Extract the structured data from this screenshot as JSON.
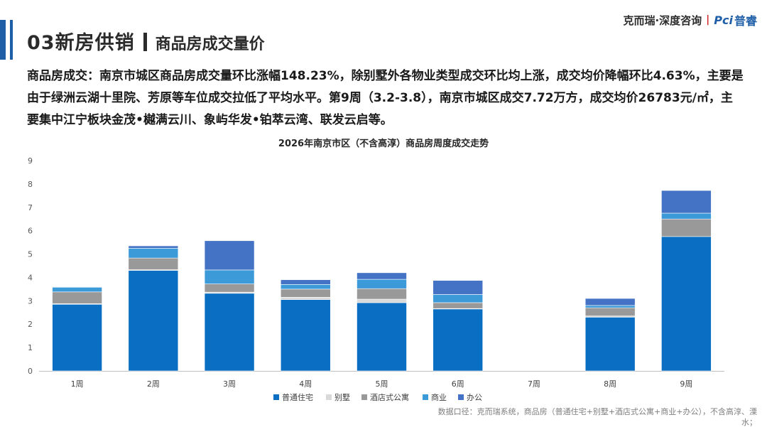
{
  "header": {
    "title_main": "03新房供销",
    "title_sub": "商品房成交量价",
    "brand_text": "克而瑞·深度咨询",
    "brand_divider": "|",
    "brand_logo": "Pci",
    "brand_logo_cn": "普睿"
  },
  "summary": "商品房成交：南京市城区商品房成交量环比涨幅148.23%，除别墅外各物业类型成交环比均上涨，成交均价降幅环比4.63%，主要是由于绿洲云湖十里院、芳原等车位成交拉低了平均水平。第9周（3.2-3.8），南京市城区成交7.72万方，成交均价26783元/㎡，主要集中江宁板块金茂•樾满云川、象屿华发•铂萃云湾、联发云启等。",
  "chart_data": {
    "type": "bar",
    "stacked": true,
    "title": "2026年南京市区（不含高淳）商品房周度成交走势",
    "categories": [
      "1周",
      "2周",
      "3周",
      "4周",
      "5周",
      "6周",
      "7周",
      "8周",
      "9周"
    ],
    "ylim": [
      0,
      9
    ],
    "yticks": [
      "0",
      "1",
      "2",
      "3",
      "4",
      "5",
      "6",
      "7",
      "8",
      "9"
    ],
    "legend_position": "bottom",
    "series": [
      {
        "name": "普通住宅",
        "color": "#0a6fc2",
        "values": [
          2.85,
          4.3,
          3.32,
          3.05,
          2.92,
          2.65,
          0,
          2.3,
          5.75
        ]
      },
      {
        "name": "别墅",
        "color": "#d9d9d9",
        "values": [
          0.03,
          0.03,
          0.05,
          0.1,
          0.15,
          0.02,
          0,
          0.05,
          0.0
        ]
      },
      {
        "name": "酒店式公寓",
        "color": "#999999",
        "values": [
          0.5,
          0.5,
          0.35,
          0.35,
          0.45,
          0.25,
          0,
          0.35,
          0.75
        ]
      },
      {
        "name": "商业",
        "color": "#3d9ad9",
        "values": [
          0.2,
          0.42,
          0.6,
          0.2,
          0.4,
          0.35,
          0,
          0.1,
          0.25
        ]
      },
      {
        "name": "办公",
        "color": "#4472c4",
        "values": [
          0.02,
          0.1,
          1.25,
          0.2,
          0.28,
          0.6,
          0,
          0.3,
          0.97
        ]
      }
    ]
  },
  "footnote": "数据口径：克而瑞系统，商品房（普通住宅+别墅+酒店式公寓+商业+办公），不含高淳、溧水；"
}
